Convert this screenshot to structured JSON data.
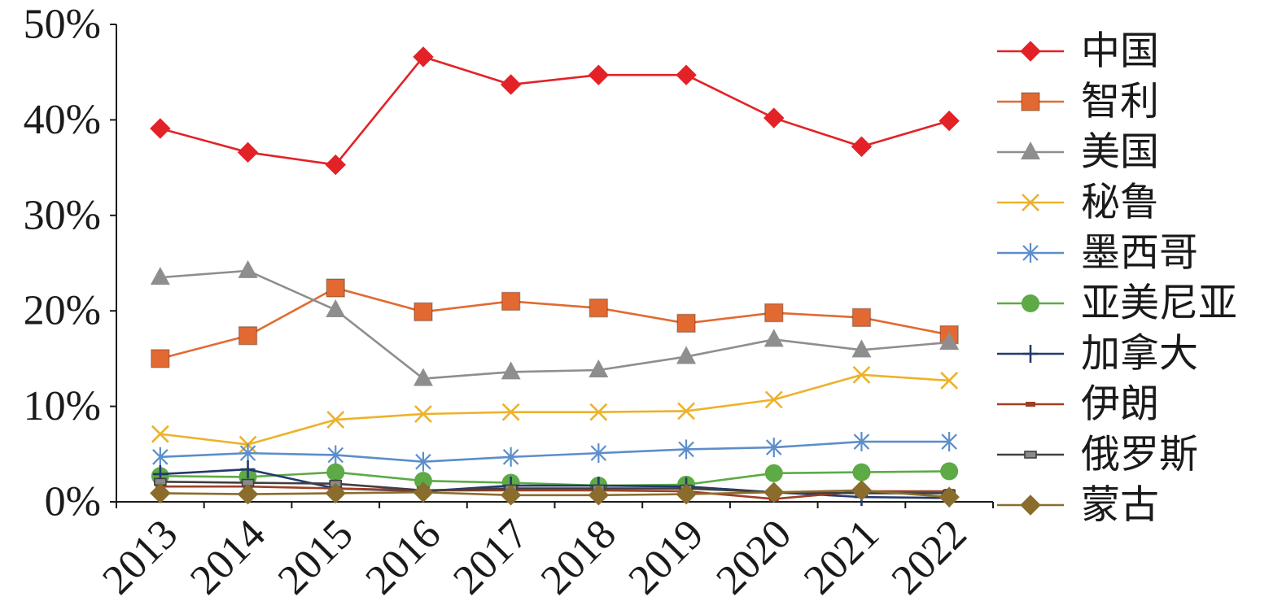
{
  "chart_data": {
    "type": "line",
    "categories": [
      "2013",
      "2014",
      "2015",
      "2016",
      "2017",
      "2018",
      "2019",
      "2020",
      "2021",
      "2022"
    ],
    "ylim": [
      0,
      50
    ],
    "yticks": [
      "0%",
      "10%",
      "20%",
      "30%",
      "40%",
      "50%"
    ],
    "grid": false,
    "legend_position": "right",
    "series": [
      {
        "name": "中国",
        "color": "#E32227",
        "marker": "diamond",
        "values": [
          39.1,
          36.6,
          35.3,
          46.6,
          43.7,
          44.7,
          44.7,
          40.2,
          37.2,
          39.9
        ]
      },
      {
        "name": "智利",
        "color": "#E26A32",
        "marker": "square",
        "values": [
          15.0,
          17.4,
          22.4,
          19.9,
          21.0,
          20.3,
          18.7,
          19.8,
          19.3,
          17.5
        ]
      },
      {
        "name": "美国",
        "color": "#8E8E8E",
        "marker": "triangle",
        "values": [
          23.5,
          24.2,
          20.1,
          12.9,
          13.6,
          13.8,
          15.2,
          17.0,
          15.9,
          16.7
        ]
      },
      {
        "name": "秘鲁",
        "color": "#EDB22B",
        "marker": "x",
        "values": [
          7.1,
          6.0,
          8.6,
          9.2,
          9.4,
          9.4,
          9.5,
          10.7,
          13.3,
          12.7
        ]
      },
      {
        "name": "墨西哥",
        "color": "#5C8ECB",
        "marker": "asterisk",
        "values": [
          4.7,
          5.1,
          4.9,
          4.2,
          4.7,
          5.1,
          5.5,
          5.7,
          6.3,
          6.3
        ]
      },
      {
        "name": "亚美尼亚",
        "color": "#5DAA46",
        "marker": "circle",
        "values": [
          2.7,
          2.6,
          3.1,
          2.2,
          2.0,
          1.7,
          1.8,
          3.0,
          3.1,
          3.2
        ]
      },
      {
        "name": "加拿大",
        "color": "#23396F",
        "marker": "plus",
        "values": [
          2.9,
          3.4,
          1.4,
          1.1,
          1.7,
          1.7,
          1.6,
          1.0,
          0.5,
          0.4
        ]
      },
      {
        "name": "伊朗",
        "color": "#9E3F24",
        "marker": "dash",
        "values": [
          1.6,
          1.6,
          1.4,
          1.2,
          1.2,
          1.2,
          1.1,
          0.3,
          1.1,
          1.1
        ]
      },
      {
        "name": "俄罗斯",
        "color": "#404040",
        "marker": "small-square",
        "values": [
          2.1,
          2.0,
          1.9,
          1.2,
          1.4,
          1.4,
          1.4,
          1.0,
          0.9,
          0.9
        ]
      },
      {
        "name": "蒙古",
        "color": "#8A6D2C",
        "marker": "diamond",
        "values": [
          0.9,
          0.8,
          0.9,
          1.0,
          0.7,
          0.7,
          0.8,
          1.0,
          1.2,
          0.5
        ]
      }
    ]
  }
}
